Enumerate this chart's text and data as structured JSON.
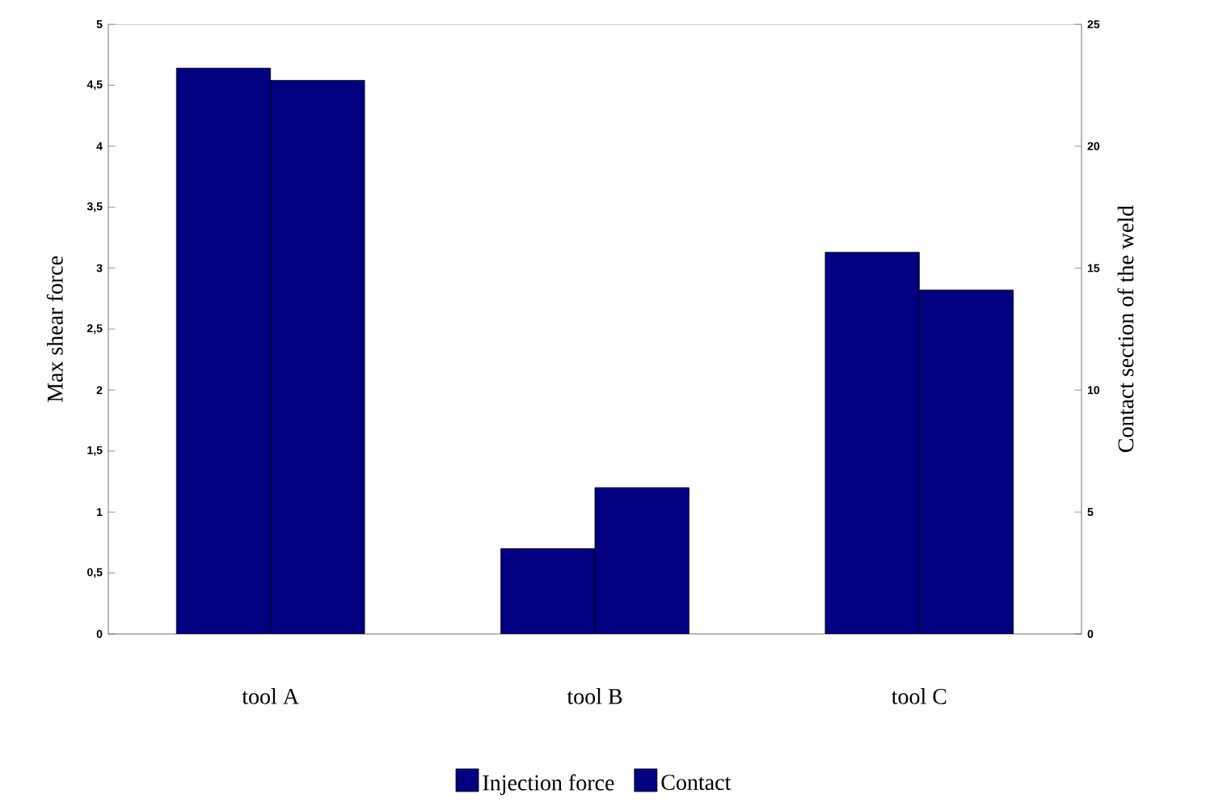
{
  "chart_data": {
    "type": "bar",
    "ylabel": "Max  shear force",
    "y2label": "Contact section of the weld",
    "categories": [
      "tool A",
      "tool B",
      "tool C"
    ],
    "series": [
      {
        "name": "Injection force",
        "color": "#000080",
        "values": [
          4.64,
          0.7,
          3.13
        ]
      },
      {
        "name": "Contact",
        "color": "#000080",
        "values": [
          22.7,
          6.0,
          14.1
        ],
        "axis": "y2"
      }
    ],
    "ylim": [
      0,
      5
    ],
    "yticks": [
      0,
      {
        "value": 0.5,
        "label": "0,5"
      },
      1,
      {
        "value": 1.5,
        "label": "1,5"
      },
      2,
      {
        "value": 2.5,
        "label": "2,5"
      },
      3,
      {
        "value": 3.5,
        "label": "3,5"
      },
      4,
      {
        "value": 4.5,
        "label": "4,5"
      },
      5
    ],
    "y2lim": [
      0,
      25
    ],
    "y2ticks": [
      0,
      5,
      10,
      15,
      20,
      25
    ],
    "legend": "bottom"
  }
}
